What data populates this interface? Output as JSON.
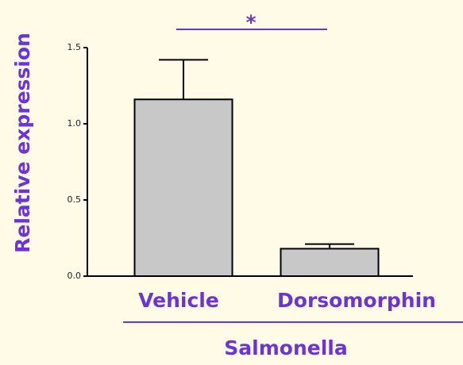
{
  "chart_data": {
    "type": "bar",
    "ylabel": "Relative expression",
    "categories": [
      "Vehicle",
      "Dorsomorphin"
    ],
    "values": [
      1.16,
      0.18
    ],
    "errors": [
      0.26,
      0.03
    ],
    "color": "#c8c8c8",
    "text_color": "#6a35d8",
    "group_label": "Salmonella",
    "annotation": "*",
    "ylim": [
      0,
      1.5
    ],
    "yticks": [
      {
        "value": 0,
        "label": "0.0"
      },
      0.5,
      {
        "value": 1,
        "label": "1.0"
      },
      1.5
    ]
  }
}
